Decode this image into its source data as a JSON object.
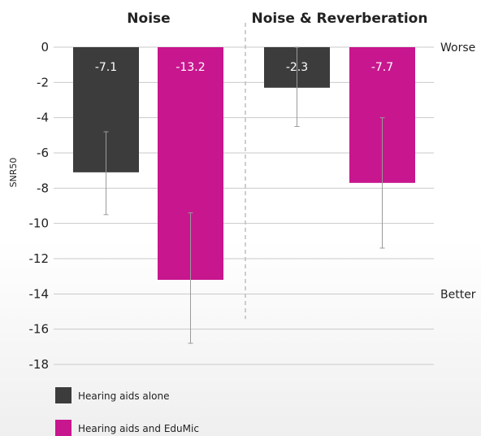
{
  "chart_data": {
    "type": "bar",
    "groups": [
      "Noise",
      "Noise & Reverberation"
    ],
    "series": [
      {
        "name": "Hearing aids alone",
        "color": "#3c3c3c",
        "values": [
          -7.1,
          -2.3
        ],
        "labels": [
          "-7.1",
          "-2.3"
        ],
        "error_low": [
          -9.5,
          -4.5
        ],
        "error_high": [
          -4.8,
          0.0
        ]
      },
      {
        "name": "Hearing aids and EduMic",
        "color": "#c8168e",
        "values": [
          -13.2,
          -7.7
        ],
        "labels": [
          "-13.2",
          "-7.7"
        ],
        "error_low": [
          -16.8,
          -11.4
        ],
        "error_high": [
          -9.4,
          -4.0
        ]
      }
    ],
    "ylabel": "SNR50",
    "ylim": [
      -18,
      0
    ],
    "yticks": [
      "0",
      "-2",
      "-4",
      "-6",
      "-8",
      "-10",
      "-12",
      "-14",
      "-16",
      "-18"
    ],
    "ytick_values": [
      0,
      -2,
      -4,
      -6,
      -8,
      -10,
      -12,
      -14,
      -16,
      -18
    ],
    "side_labels": [
      {
        "text": "Worse",
        "value": 0
      },
      {
        "text": "Better",
        "value": -14
      }
    ],
    "grid": true,
    "legend_position": "bottom-left"
  }
}
